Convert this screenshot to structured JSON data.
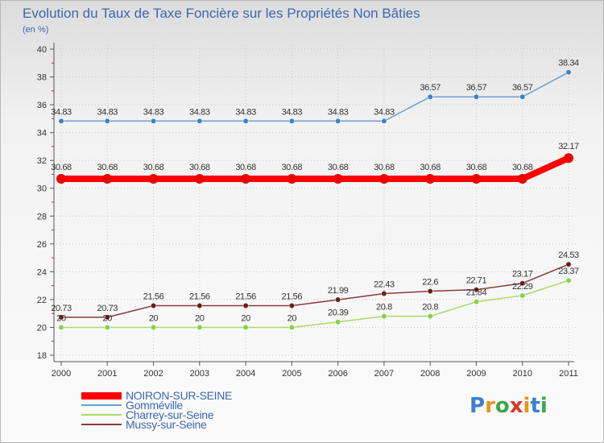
{
  "header": {
    "title": "Evolution du Taux de Taxe Foncière sur les Propriétés Non Bâties",
    "units": "(en %)"
  },
  "colors": {
    "title": "#3b68b0",
    "axis": "#555555",
    "tick": "#c03030",
    "grid": "#c8c8c8"
  },
  "chart_data": {
    "type": "line",
    "title": "Evolution du Taux de Taxe Foncière sur les Propriétés Non Bâties",
    "ylabel": "(en %)",
    "xlabel": "",
    "ylim": [
      18,
      40
    ],
    "yticks": [
      18,
      20,
      22,
      24,
      26,
      28,
      30,
      32,
      34,
      36,
      38,
      40
    ],
    "x": [
      "2000",
      "2001",
      "2002",
      "2003",
      "2004",
      "2005",
      "2006",
      "2007",
      "2008",
      "2009",
      "2010",
      "2011"
    ],
    "series": [
      {
        "name": "Gomméville",
        "color": "#6a9fcf",
        "marker": "#3a82c4",
        "values": [
          34.83,
          34.83,
          34.83,
          34.83,
          34.83,
          34.83,
          34.83,
          34.83,
          36.57,
          36.57,
          36.57,
          38.34
        ],
        "labels": [
          "34.83",
          "34.83",
          "34.83",
          "34.83",
          "34.83",
          "34.83",
          "34.83",
          "34.83",
          "36.57",
          "36.57",
          "36.57",
          "38.34"
        ]
      },
      {
        "name": "NOIRON-SUR-SEINE",
        "color": "#ff0000",
        "marker": "#ee0000",
        "thick": true,
        "values": [
          30.68,
          30.68,
          30.68,
          30.68,
          30.68,
          30.68,
          30.68,
          30.68,
          30.68,
          30.68,
          30.68,
          32.17
        ],
        "labels": [
          "30.68",
          "30.68",
          "30.68",
          "30.68",
          "30.68",
          "30.68",
          "30.68",
          "30.68",
          "30.68",
          "30.68",
          "30.68",
          "32.17"
        ]
      },
      {
        "name": "Charrey-sur-Seine",
        "color": "#a6dc6a",
        "marker": "#8ccf4a",
        "values": [
          20,
          20,
          20,
          20,
          20,
          20,
          20.39,
          20.8,
          20.8,
          21.84,
          22.29,
          23.37
        ],
        "labels": [
          "20",
          "20",
          "20",
          "20",
          "20",
          "20",
          "20.39",
          "20.8",
          "20.8",
          "21.84",
          "22.29",
          "23.37"
        ]
      },
      {
        "name": "Mussy-sur-Seine",
        "color": "#8a3a3a",
        "marker": "#6b1e1e",
        "values": [
          20.73,
          20.73,
          21.56,
          21.56,
          21.56,
          21.56,
          21.99,
          22.43,
          22.6,
          22.71,
          23.17,
          24.53
        ],
        "labels": [
          "20.73",
          "20.73",
          "21.56",
          "21.56",
          "21.56",
          "21.56",
          "21.99",
          "22.43",
          "22.6",
          "22.71",
          "23.17",
          "24.53"
        ]
      }
    ],
    "legend": {
      "placement": "bottom-left",
      "order": [
        "NOIRON-SUR-SEINE",
        "Gomméville",
        "Charrey-sur-Seine",
        "Mussy-sur-Seine"
      ]
    }
  },
  "legend": {
    "items": [
      {
        "label": "NOIRON-SUR-SEINE",
        "color": "#ff0000",
        "thick": true
      },
      {
        "label": "Gomméville",
        "color": "#6a9fcf"
      },
      {
        "label": "Charrey-sur-Seine",
        "color": "#a6dc6a"
      },
      {
        "label": "Mussy-sur-Seine",
        "color": "#8a3a3a"
      }
    ]
  },
  "logo": {
    "text": "Proxiti",
    "letter_colors": [
      "#3a7fd0",
      "#e8941e",
      "#3aa84a",
      "#d63a2a",
      "#e8941e",
      "#3a7fd0",
      "#3aa84a"
    ]
  }
}
